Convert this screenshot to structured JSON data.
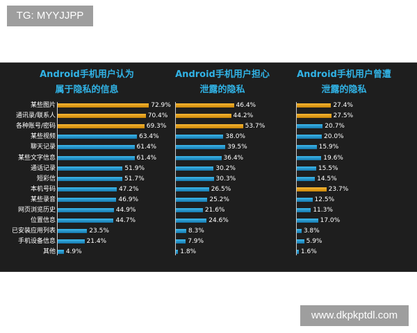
{
  "watermark_top": "TG: MYYJJPP",
  "watermark_bottom": "www.dkpkptdl.com",
  "colors": {
    "background": "#1e1e1e",
    "title": "#31b3e6",
    "highlight_bar": "#f0a020",
    "normal_bar": "#2a9fd8"
  },
  "chart_data": [
    {
      "type": "bar",
      "orientation": "horizontal",
      "title_line1": "Android手机用户认为",
      "title_line2": "属于隐私的信息",
      "categories": [
        "某些图片",
        "通讯录/联系人",
        "各种账号/密码",
        "某些视频",
        "聊天记录",
        "某些文字信息",
        "通话记录",
        "短彩信",
        "本机号码",
        "某些录音",
        "网页浏览历史",
        "位置信息",
        "已安装应用列表",
        "手机设备信息",
        "其他"
      ],
      "values": [
        72.9,
        70.4,
        69.3,
        63.4,
        61.4,
        61.4,
        51.9,
        51.7,
        47.2,
        46.9,
        44.9,
        44.7,
        23.5,
        21.4,
        4.9
      ],
      "labels": [
        "72.9%",
        "70.4%",
        "69.3%",
        "63.4%",
        "61.4%",
        "61.4%",
        "51.9%",
        "51.7%",
        "47.2%",
        "46.9%",
        "44.9%",
        "44.7%",
        "23.5%",
        "21.4%",
        "4.9%"
      ],
      "highlight": [
        true,
        true,
        true,
        false,
        false,
        false,
        false,
        false,
        false,
        false,
        false,
        false,
        false,
        false,
        false
      ]
    },
    {
      "type": "bar",
      "orientation": "horizontal",
      "title_line1": "Android手机用户担心",
      "title_line2": "泄露的隐私",
      "categories": [
        "某些图片",
        "通讯录/联系人",
        "各种账号/密码",
        "某些视频",
        "聊天记录",
        "某些文字信息",
        "通话记录",
        "短彩信",
        "本机号码",
        "某些录音",
        "网页浏览历史",
        "位置信息",
        "已安装应用列表",
        "手机设备信息",
        "其他"
      ],
      "values": [
        46.4,
        44.2,
        53.7,
        38.0,
        39.5,
        36.4,
        30.2,
        30.3,
        26.5,
        25.2,
        21.6,
        24.6,
        8.3,
        7.9,
        1.8
      ],
      "labels": [
        "46.4%",
        "44.2%",
        "53.7%",
        "38.0%",
        "39.5%",
        "36.4%",
        "30.2%",
        "30.3%",
        "26.5%",
        "25.2%",
        "21.6%",
        "24.6%",
        "8.3%",
        "7.9%",
        "1.8%"
      ],
      "highlight": [
        true,
        true,
        true,
        false,
        false,
        false,
        false,
        false,
        false,
        false,
        false,
        false,
        false,
        false,
        false
      ]
    },
    {
      "type": "bar",
      "orientation": "horizontal",
      "title_line1": "Android手机用户曾遭",
      "title_line2": "泄露的隐私",
      "categories": [
        "某些图片",
        "通讯录/联系人",
        "各种账号/密码",
        "某些视频",
        "聊天记录",
        "某些文字信息",
        "通话记录",
        "短彩信",
        "本机号码",
        "某些录音",
        "网页浏览历史",
        "位置信息",
        "已安装应用列表",
        "手机设备信息",
        "其他"
      ],
      "values": [
        27.4,
        27.5,
        20.7,
        20.0,
        15.9,
        19.6,
        15.5,
        14.5,
        23.7,
        12.5,
        11.3,
        17.0,
        3.8,
        5.9,
        1.6
      ],
      "labels": [
        "27.4%",
        "27.5%",
        "20.7%",
        "20.0%",
        "15.9%",
        "19.6%",
        "15.5%",
        "14.5%",
        "23.7%",
        "12.5%",
        "11.3%",
        "17.0%",
        "3.8%",
        "5.9%",
        "1.6%"
      ],
      "highlight": [
        true,
        true,
        false,
        false,
        false,
        false,
        false,
        false,
        true,
        false,
        false,
        false,
        false,
        false,
        false
      ]
    }
  ]
}
